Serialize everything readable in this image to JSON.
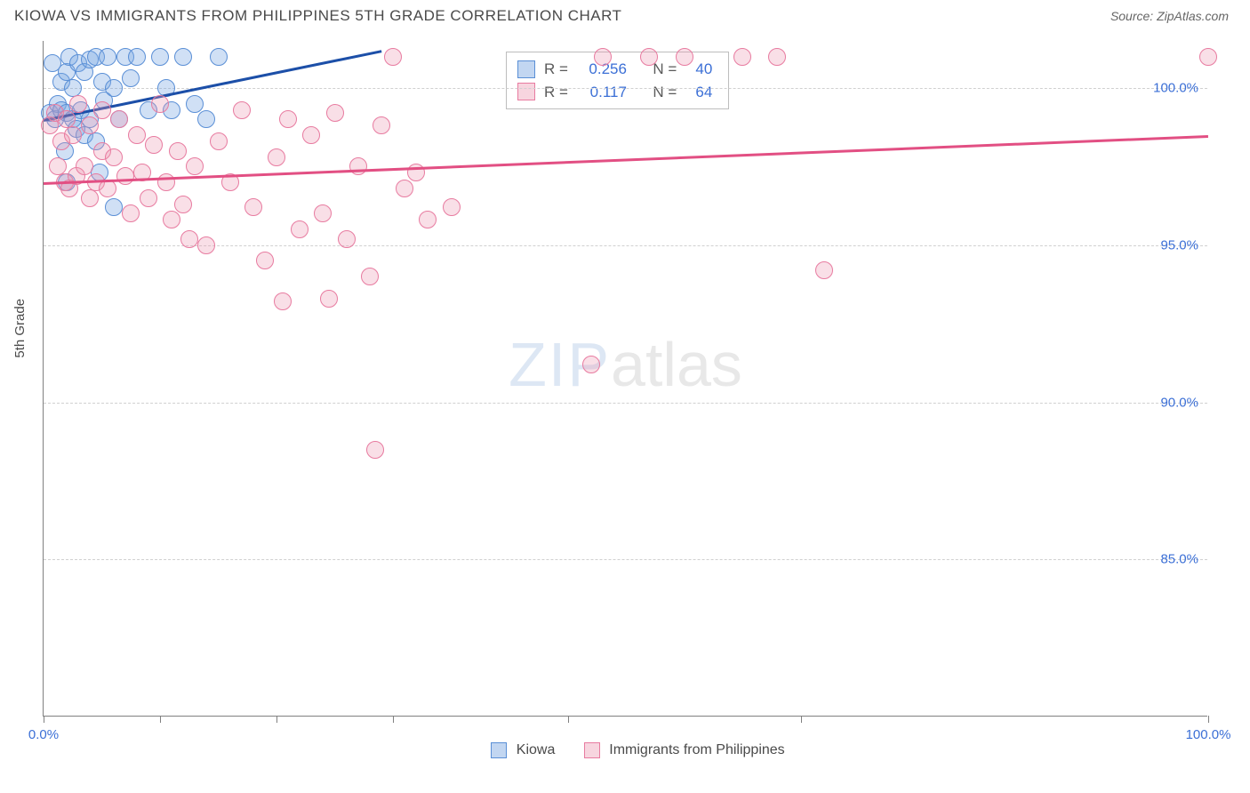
{
  "title": "KIOWA VS IMMIGRANTS FROM PHILIPPINES 5TH GRADE CORRELATION CHART",
  "source": "Source: ZipAtlas.com",
  "ylabel": "5th Grade",
  "watermark": {
    "part1": "ZIP",
    "part2": "atlas"
  },
  "chart": {
    "type": "scatter",
    "xlim": [
      0,
      100
    ],
    "ylim": [
      80,
      101.5
    ],
    "y_gridlines": [
      85,
      90,
      95,
      100
    ],
    "y_tick_labels": [
      "85.0%",
      "90.0%",
      "95.0%",
      "100.0%"
    ],
    "x_ticks": [
      0,
      10,
      20,
      30,
      45,
      65,
      100
    ],
    "x_tick_labels": {
      "0": "0.0%",
      "100": "100.0%"
    },
    "background_color": "#ffffff",
    "grid_color": "#d0d0d0",
    "marker_radius": 10,
    "series": [
      {
        "name": "Kiowa",
        "fill": "rgba(120,165,225,0.35)",
        "stroke": "#5a8fd6",
        "trend_color": "#1c4fa8",
        "r_label": "R =",
        "r_value": "0.256",
        "n_label": "N =",
        "n_value": "40",
        "trend": {
          "x1": 0,
          "y1": 99.0,
          "x2": 29,
          "y2": 101.2
        },
        "points": [
          [
            0.5,
            99.2
          ],
          [
            0.8,
            100.8
          ],
          [
            1.0,
            99.0
          ],
          [
            1.2,
            99.5
          ],
          [
            1.5,
            100.2
          ],
          [
            1.5,
            99.3
          ],
          [
            1.8,
            98.0
          ],
          [
            2.0,
            100.5
          ],
          [
            2.0,
            99.2
          ],
          [
            2.2,
            101.0
          ],
          [
            2.5,
            99.0
          ],
          [
            2.5,
            100.0
          ],
          [
            2.8,
            98.7
          ],
          [
            3.0,
            100.8
          ],
          [
            3.2,
            99.3
          ],
          [
            3.5,
            100.5
          ],
          [
            3.5,
            98.5
          ],
          [
            4.0,
            100.9
          ],
          [
            4.0,
            99.0
          ],
          [
            4.5,
            101.0
          ],
          [
            4.5,
            98.3
          ],
          [
            5.0,
            100.2
          ],
          [
            5.2,
            99.6
          ],
          [
            5.5,
            101.0
          ],
          [
            6.0,
            100.0
          ],
          [
            6.5,
            99.0
          ],
          [
            7.0,
            101.0
          ],
          [
            7.5,
            100.3
          ],
          [
            8.0,
            101.0
          ],
          [
            9.0,
            99.3
          ],
          [
            10.0,
            101.0
          ],
          [
            10.5,
            100.0
          ],
          [
            11.0,
            99.3
          ],
          [
            12.0,
            101.0
          ],
          [
            13.0,
            99.5
          ],
          [
            14.0,
            99.0
          ],
          [
            15.0,
            101.0
          ],
          [
            2.0,
            97.0
          ],
          [
            4.8,
            97.3
          ],
          [
            6.0,
            96.2
          ]
        ]
      },
      {
        "name": "Immigrants from Philippines",
        "fill": "rgba(235,150,175,0.30)",
        "stroke": "#e87ba0",
        "trend_color": "#e24f83",
        "r_label": "R =",
        "r_value": "0.117",
        "n_label": "N =",
        "n_value": "64",
        "trend": {
          "x1": 0,
          "y1": 97.0,
          "x2": 100,
          "y2": 98.5
        },
        "points": [
          [
            0.5,
            98.8
          ],
          [
            1.0,
            99.2
          ],
          [
            1.2,
            97.5
          ],
          [
            1.5,
            98.3
          ],
          [
            1.8,
            97.0
          ],
          [
            2.0,
            99.0
          ],
          [
            2.2,
            96.8
          ],
          [
            2.5,
            98.5
          ],
          [
            2.8,
            97.2
          ],
          [
            3.0,
            99.5
          ],
          [
            3.5,
            97.5
          ],
          [
            4.0,
            98.8
          ],
          [
            4.0,
            96.5
          ],
          [
            4.5,
            97.0
          ],
          [
            5.0,
            98.0
          ],
          [
            5.0,
            99.3
          ],
          [
            5.5,
            96.8
          ],
          [
            6.0,
            97.8
          ],
          [
            6.5,
            99.0
          ],
          [
            7.0,
            97.2
          ],
          [
            7.5,
            96.0
          ],
          [
            8.0,
            98.5
          ],
          [
            8.5,
            97.3
          ],
          [
            9.0,
            96.5
          ],
          [
            9.5,
            98.2
          ],
          [
            10.0,
            99.5
          ],
          [
            10.5,
            97.0
          ],
          [
            11.0,
            95.8
          ],
          [
            11.5,
            98.0
          ],
          [
            12.0,
            96.3
          ],
          [
            13.0,
            97.5
          ],
          [
            14.0,
            95.0
          ],
          [
            15.0,
            98.3
          ],
          [
            16.0,
            97.0
          ],
          [
            17.0,
            99.3
          ],
          [
            18.0,
            96.2
          ],
          [
            19.0,
            94.5
          ],
          [
            20.0,
            97.8
          ],
          [
            21.0,
            99.0
          ],
          [
            22.0,
            95.5
          ],
          [
            23.0,
            98.5
          ],
          [
            24.0,
            96.0
          ],
          [
            25.0,
            99.2
          ],
          [
            26.0,
            95.2
          ],
          [
            27.0,
            97.5
          ],
          [
            28.0,
            94.0
          ],
          [
            29.0,
            98.8
          ],
          [
            30.0,
            101.0
          ],
          [
            31.0,
            96.8
          ],
          [
            32.0,
            97.3
          ],
          [
            33.0,
            95.8
          ],
          [
            35.0,
            96.2
          ],
          [
            20.5,
            93.2
          ],
          [
            24.5,
            93.3
          ],
          [
            28.5,
            88.5
          ],
          [
            47.0,
            91.2
          ],
          [
            48.0,
            101.0
          ],
          [
            52.0,
            101.0
          ],
          [
            55.0,
            101.0
          ],
          [
            60.0,
            101.0
          ],
          [
            63.0,
            101.0
          ],
          [
            67.0,
            94.2
          ],
          [
            100.0,
            101.0
          ],
          [
            12.5,
            95.2
          ]
        ]
      }
    ]
  },
  "legend": {
    "item1": "Kiowa",
    "item2": "Immigrants from Philippines"
  }
}
